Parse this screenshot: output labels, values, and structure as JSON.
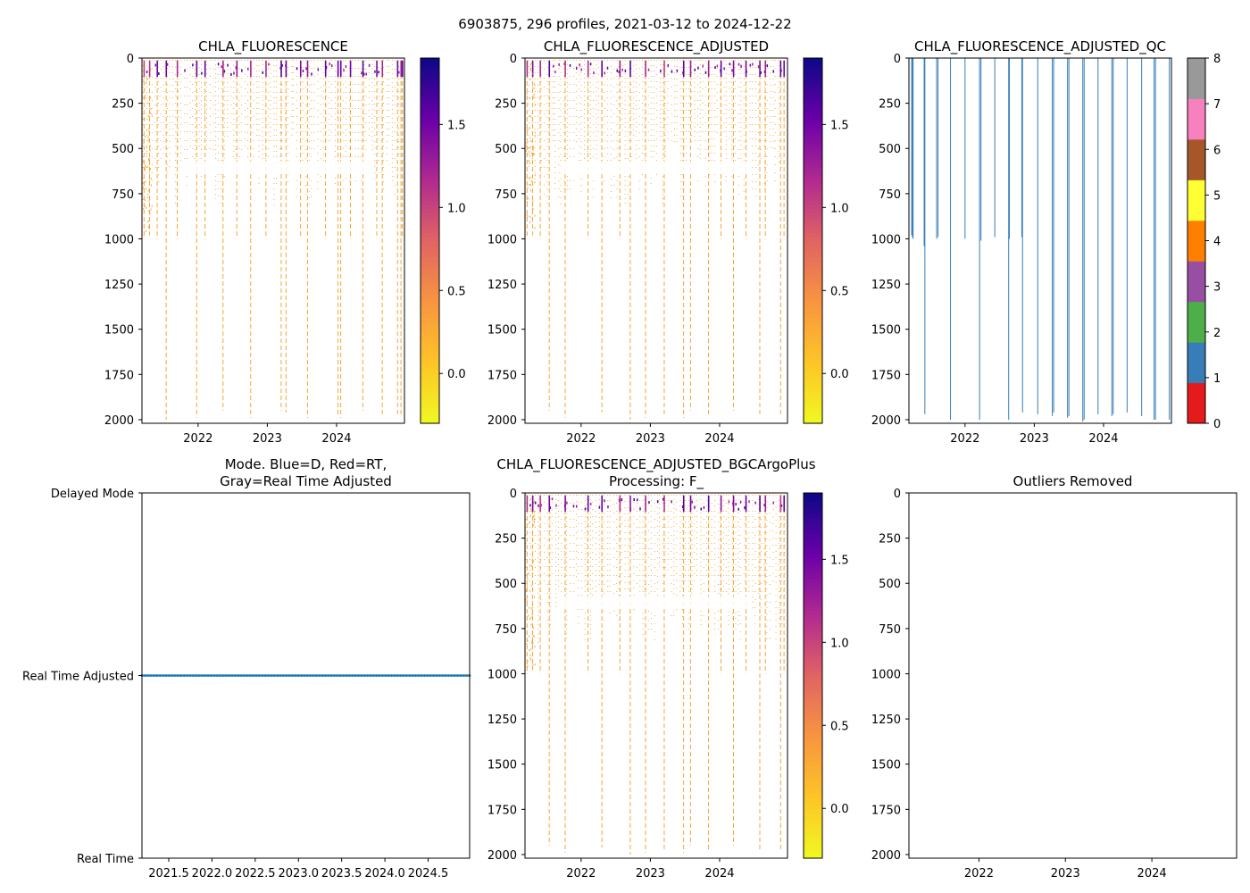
{
  "suptitle": "6903875, 296 profiles, 2021-03-12 to 2024-12-22",
  "colors": {
    "plasma_r": [
      "#f0f921",
      "#fdc527",
      "#f89540",
      "#e16462",
      "#b12a90",
      "#6a00a8",
      "#0d0887"
    ],
    "qc": [
      "#e41a1c",
      "#377eb8",
      "#4daf4a",
      "#984ea3",
      "#ff7f00",
      "#ffff33",
      "#a65628",
      "#f781bf",
      "#999999"
    ],
    "mode_line": "#1f77b4",
    "fluor_dot": "#f6a534"
  },
  "chart_data": [
    {
      "id": "p1",
      "type": "heatmap",
      "title": "CHLA_FLUORESCENCE",
      "xlabel": "",
      "ylabel": "",
      "xlim": [
        2021.19,
        2024.98
      ],
      "ylim": [
        2020,
        0
      ],
      "xticks": [
        2022,
        2023,
        2024
      ],
      "xtick_labels": [
        "2022",
        "2023",
        "2024"
      ],
      "yticks": [
        0,
        250,
        500,
        750,
        1000,
        1250,
        1500,
        1750,
        2000
      ],
      "ytick_labels": [
        "0",
        "250",
        "500",
        "750",
        "1000",
        "1250",
        "1500",
        "1750",
        "2000"
      ],
      "colorbar": {
        "vmin": -0.3,
        "vmax": 1.9,
        "ticks": [
          0.0,
          0.5,
          1.0,
          1.5
        ],
        "tick_labels": [
          "0.0",
          "0.5",
          "1.0",
          "1.5"
        ],
        "cmap": "plasma_r"
      },
      "profile_dates": [
        2021.22,
        2021.3,
        2021.41,
        2021.54,
        2021.7,
        2021.98,
        2022.1,
        2022.36,
        2022.56,
        2022.76,
        2022.98,
        2023.2,
        2023.27,
        2023.48,
        2023.58,
        2023.84,
        2024.02,
        2024.06,
        2024.2,
        2024.38,
        2024.58,
        2024.66,
        2024.88,
        2024.93,
        2024.95
      ],
      "profile_max_depth": [
        1000,
        980,
        1000,
        2000,
        1000,
        1990,
        1000,
        1950,
        1000,
        1990,
        1000,
        1950,
        1960,
        1000,
        1990,
        1000,
        1980,
        1990,
        1000,
        1950,
        1000,
        1980,
        1970,
        1980,
        1000
      ]
    },
    {
      "id": "p2",
      "type": "heatmap",
      "title": "CHLA_FLUORESCENCE_ADJUSTED",
      "xlabel": "",
      "ylabel": "",
      "xlim": [
        2021.19,
        2024.98
      ],
      "ylim": [
        2020,
        0
      ],
      "xticks": [
        2022,
        2023,
        2024
      ],
      "xtick_labels": [
        "2022",
        "2023",
        "2024"
      ],
      "yticks": [
        0,
        250,
        500,
        750,
        1000,
        1250,
        1500,
        1750,
        2000
      ],
      "ytick_labels": [
        "0",
        "250",
        "500",
        "750",
        "1000",
        "1250",
        "1500",
        "1750",
        "2000"
      ],
      "colorbar": {
        "vmin": -0.3,
        "vmax": 1.9,
        "ticks": [
          0.0,
          0.5,
          1.0,
          1.5
        ],
        "tick_labels": [
          "0.0",
          "0.5",
          "1.0",
          "1.5"
        ],
        "cmap": "plasma_r"
      },
      "profile_dates": [
        2021.22,
        2021.3,
        2021.41,
        2021.54,
        2021.77,
        2022.1,
        2022.3,
        2022.56,
        2022.71,
        2022.93,
        2023.2,
        2023.48,
        2023.58,
        2023.84,
        2024.02,
        2024.2,
        2024.38,
        2024.58,
        2024.66,
        2024.88,
        2024.93
      ],
      "profile_max_depth": [
        1000,
        980,
        1000,
        1950,
        1990,
        1000,
        1960,
        1000,
        2000,
        1990,
        1970,
        1990,
        1950,
        1980,
        1000,
        1950,
        1000,
        1980,
        1000,
        1970,
        1000
      ]
    },
    {
      "id": "p3",
      "type": "heatmap",
      "title": "CHLA_FLUORESCENCE_ADJUSTED_QC",
      "xlabel": "",
      "ylabel": "",
      "xlim": [
        2021.19,
        2024.98
      ],
      "ylim": [
        2020,
        0
      ],
      "xticks": [
        2022,
        2023,
        2024
      ],
      "xtick_labels": [
        "2022",
        "2023",
        "2024"
      ],
      "yticks": [
        0,
        250,
        500,
        750,
        1000,
        1250,
        1500,
        1750,
        2000
      ],
      "ytick_labels": [
        "0",
        "250",
        "500",
        "750",
        "1000",
        "1250",
        "1500",
        "1750",
        "2000"
      ],
      "colorbar": {
        "vmin": 0,
        "vmax": 8,
        "ticks": [
          0,
          1,
          2,
          3,
          4,
          5,
          6,
          7,
          8
        ],
        "tick_labels": [
          "0",
          "1",
          "2",
          "3",
          "4",
          "5",
          "6",
          "7",
          "8"
        ],
        "cmap": "qc"
      },
      "qc_lines": [
        {
          "x": 2021.23,
          "depth": 980
        },
        {
          "x": 2021.24,
          "depth": 990
        },
        {
          "x": 2021.25,
          "depth": 1000
        },
        {
          "x": 2021.41,
          "depth": 1040
        },
        {
          "x": 2021.42,
          "depth": 1970
        },
        {
          "x": 2021.59,
          "depth": 1000
        },
        {
          "x": 2021.61,
          "depth": 990
        },
        {
          "x": 2021.79,
          "depth": 2000
        },
        {
          "x": 2022.0,
          "depth": 1000
        },
        {
          "x": 2022.21,
          "depth": 2000
        },
        {
          "x": 2022.23,
          "depth": 1010
        },
        {
          "x": 2022.43,
          "depth": 990
        },
        {
          "x": 2022.63,
          "depth": 2000
        },
        {
          "x": 2022.64,
          "depth": 1000
        },
        {
          "x": 2022.82,
          "depth": 990
        },
        {
          "x": 2022.83,
          "depth": 1960
        },
        {
          "x": 2023.05,
          "depth": 1970
        },
        {
          "x": 2023.26,
          "depth": 1980
        },
        {
          "x": 2023.28,
          "depth": 1960
        },
        {
          "x": 2023.48,
          "depth": 1990
        },
        {
          "x": 2023.5,
          "depth": 1980
        },
        {
          "x": 2023.7,
          "depth": 2010
        },
        {
          "x": 2023.72,
          "depth": 2000
        },
        {
          "x": 2023.92,
          "depth": 1970
        },
        {
          "x": 2024.12,
          "depth": 1980
        },
        {
          "x": 2024.14,
          "depth": 1970
        },
        {
          "x": 2024.34,
          "depth": 1960
        },
        {
          "x": 2024.55,
          "depth": 1980
        },
        {
          "x": 2024.73,
          "depth": 2000
        },
        {
          "x": 2024.75,
          "depth": 2000
        },
        {
          "x": 2024.95,
          "depth": 2000
        }
      ]
    },
    {
      "id": "p4",
      "type": "line",
      "title_lines": [
        "Mode. Blue=D, Red=RT,",
        "Gray=Real Time Adjusted"
      ],
      "xlabel": "",
      "ylabel": "",
      "xlim": [
        2021.19,
        2024.98
      ],
      "ylim": [
        0,
        2
      ],
      "xticks": [
        2021.5,
        2022.0,
        2022.5,
        2023.0,
        2023.5,
        2024.0,
        2024.5
      ],
      "xtick_labels": [
        "2021.5",
        "2022.0",
        "2022.5",
        "2023.0",
        "2023.5",
        "2024.0",
        "2024.5"
      ],
      "yticks": [
        2,
        1,
        0
      ],
      "ytick_labels": [
        "Delayed Mode",
        "Real Time Adjusted",
        "Real Time"
      ],
      "series": [
        {
          "name": "mode",
          "x_start": 2021.19,
          "x_end": 2024.98,
          "y": 1
        }
      ]
    },
    {
      "id": "p5",
      "type": "heatmap",
      "title_lines": [
        "CHLA_FLUORESCENCE_ADJUSTED_BGCArgoPlus",
        "Processing: F_"
      ],
      "xlabel": "",
      "ylabel": "",
      "xlim": [
        2021.19,
        2024.98
      ],
      "ylim": [
        2020,
        0
      ],
      "xticks": [
        2022,
        2023,
        2024
      ],
      "xtick_labels": [
        "2022",
        "2023",
        "2024"
      ],
      "yticks": [
        0,
        250,
        500,
        750,
        1000,
        1250,
        1500,
        1750,
        2000
      ],
      "ytick_labels": [
        "0",
        "250",
        "500",
        "750",
        "1000",
        "1250",
        "1500",
        "1750",
        "2000"
      ],
      "colorbar": {
        "vmin": -0.3,
        "vmax": 1.9,
        "ticks": [
          0.0,
          0.5,
          1.0,
          1.5
        ],
        "tick_labels": [
          "0.0",
          "0.5",
          "1.0",
          "1.5"
        ],
        "cmap": "plasma_r"
      },
      "profile_dates": [
        2021.22,
        2021.3,
        2021.41,
        2021.54,
        2021.77,
        2022.1,
        2022.3,
        2022.56,
        2022.71,
        2022.93,
        2023.2,
        2023.48,
        2023.58,
        2023.84,
        2024.02,
        2024.2,
        2024.38,
        2024.58,
        2024.66,
        2024.88,
        2024.93
      ],
      "profile_max_depth": [
        1000,
        980,
        1000,
        1950,
        1990,
        1000,
        1960,
        1000,
        2000,
        1990,
        1970,
        1990,
        1950,
        1980,
        1000,
        1950,
        1000,
        1980,
        1000,
        1970,
        1000
      ]
    },
    {
      "id": "p6",
      "type": "scatter",
      "title": "Outliers Removed",
      "xlabel": "",
      "ylabel": "",
      "xlim": [
        2021.19,
        2024.98
      ],
      "ylim": [
        2020,
        0
      ],
      "xticks": [
        2022,
        2023,
        2024
      ],
      "xtick_labels": [
        "2022",
        "2023",
        "2024"
      ],
      "yticks": [
        0,
        250,
        500,
        750,
        1000,
        1250,
        1500,
        1750,
        2000
      ],
      "ytick_labels": [
        "0",
        "250",
        "500",
        "750",
        "1000",
        "1250",
        "1500",
        "1750",
        "2000"
      ],
      "points": []
    }
  ]
}
